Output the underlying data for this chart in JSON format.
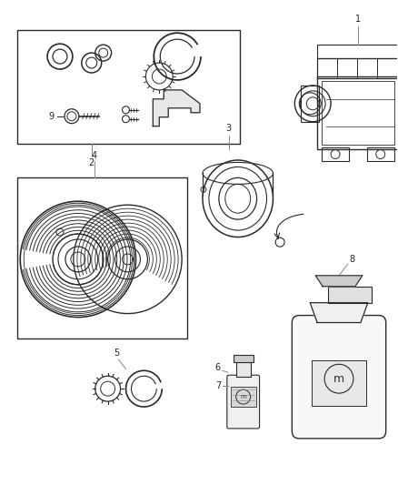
{
  "bg_color": "#ffffff",
  "line_color": "#2a2a2a",
  "fig_width": 4.38,
  "fig_height": 5.33,
  "dpi": 100
}
